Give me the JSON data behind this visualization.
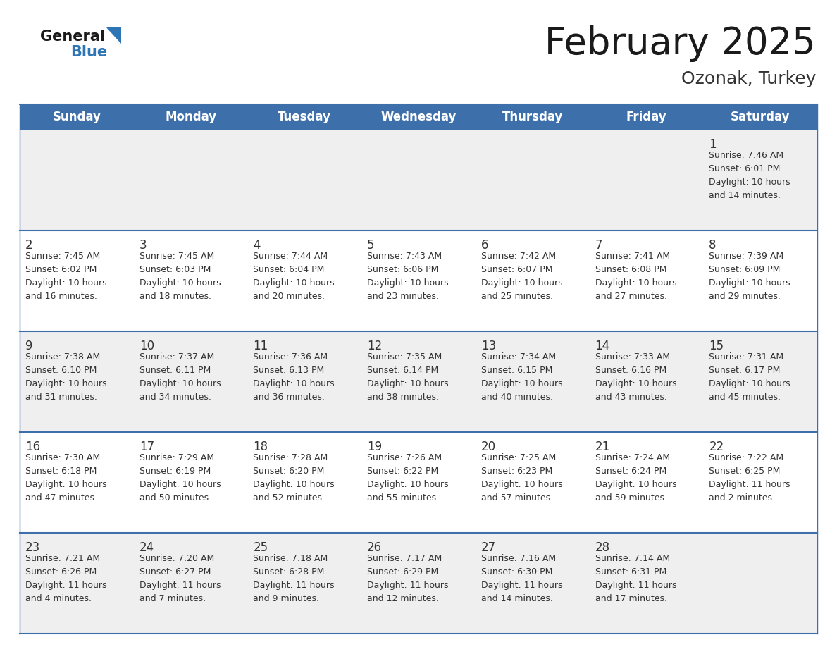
{
  "title": "February 2025",
  "subtitle": "Ozonak, Turkey",
  "header_color": "#3D6FAB",
  "header_text_color": "#FFFFFF",
  "day_names": [
    "Sunday",
    "Monday",
    "Tuesday",
    "Wednesday",
    "Thursday",
    "Friday",
    "Saturday"
  ],
  "bg_color": "#FFFFFF",
  "cell_bg_0": "#EFEFEF",
  "cell_bg_1": "#FFFFFF",
  "cell_bg_2": "#EFEFEF",
  "cell_bg_3": "#FFFFFF",
  "cell_bg_4": "#EFEFEF",
  "row_line_color": "#3D6FAB",
  "text_color": "#333333",
  "days": [
    {
      "day": 1,
      "col": 6,
      "row": 0,
      "sunrise": "7:46 AM",
      "sunset": "6:01 PM",
      "daylight_hours": 10,
      "daylight_minutes": 14
    },
    {
      "day": 2,
      "col": 0,
      "row": 1,
      "sunrise": "7:45 AM",
      "sunset": "6:02 PM",
      "daylight_hours": 10,
      "daylight_minutes": 16
    },
    {
      "day": 3,
      "col": 1,
      "row": 1,
      "sunrise": "7:45 AM",
      "sunset": "6:03 PM",
      "daylight_hours": 10,
      "daylight_minutes": 18
    },
    {
      "day": 4,
      "col": 2,
      "row": 1,
      "sunrise": "7:44 AM",
      "sunset": "6:04 PM",
      "daylight_hours": 10,
      "daylight_minutes": 20
    },
    {
      "day": 5,
      "col": 3,
      "row": 1,
      "sunrise": "7:43 AM",
      "sunset": "6:06 PM",
      "daylight_hours": 10,
      "daylight_minutes": 23
    },
    {
      "day": 6,
      "col": 4,
      "row": 1,
      "sunrise": "7:42 AM",
      "sunset": "6:07 PM",
      "daylight_hours": 10,
      "daylight_minutes": 25
    },
    {
      "day": 7,
      "col": 5,
      "row": 1,
      "sunrise": "7:41 AM",
      "sunset": "6:08 PM",
      "daylight_hours": 10,
      "daylight_minutes": 27
    },
    {
      "day": 8,
      "col": 6,
      "row": 1,
      "sunrise": "7:39 AM",
      "sunset": "6:09 PM",
      "daylight_hours": 10,
      "daylight_minutes": 29
    },
    {
      "day": 9,
      "col": 0,
      "row": 2,
      "sunrise": "7:38 AM",
      "sunset": "6:10 PM",
      "daylight_hours": 10,
      "daylight_minutes": 31
    },
    {
      "day": 10,
      "col": 1,
      "row": 2,
      "sunrise": "7:37 AM",
      "sunset": "6:11 PM",
      "daylight_hours": 10,
      "daylight_minutes": 34
    },
    {
      "day": 11,
      "col": 2,
      "row": 2,
      "sunrise": "7:36 AM",
      "sunset": "6:13 PM",
      "daylight_hours": 10,
      "daylight_minutes": 36
    },
    {
      "day": 12,
      "col": 3,
      "row": 2,
      "sunrise": "7:35 AM",
      "sunset": "6:14 PM",
      "daylight_hours": 10,
      "daylight_minutes": 38
    },
    {
      "day": 13,
      "col": 4,
      "row": 2,
      "sunrise": "7:34 AM",
      "sunset": "6:15 PM",
      "daylight_hours": 10,
      "daylight_minutes": 40
    },
    {
      "day": 14,
      "col": 5,
      "row": 2,
      "sunrise": "7:33 AM",
      "sunset": "6:16 PM",
      "daylight_hours": 10,
      "daylight_minutes": 43
    },
    {
      "day": 15,
      "col": 6,
      "row": 2,
      "sunrise": "7:31 AM",
      "sunset": "6:17 PM",
      "daylight_hours": 10,
      "daylight_minutes": 45
    },
    {
      "day": 16,
      "col": 0,
      "row": 3,
      "sunrise": "7:30 AM",
      "sunset": "6:18 PM",
      "daylight_hours": 10,
      "daylight_minutes": 47
    },
    {
      "day": 17,
      "col": 1,
      "row": 3,
      "sunrise": "7:29 AM",
      "sunset": "6:19 PM",
      "daylight_hours": 10,
      "daylight_minutes": 50
    },
    {
      "day": 18,
      "col": 2,
      "row": 3,
      "sunrise": "7:28 AM",
      "sunset": "6:20 PM",
      "daylight_hours": 10,
      "daylight_minutes": 52
    },
    {
      "day": 19,
      "col": 3,
      "row": 3,
      "sunrise": "7:26 AM",
      "sunset": "6:22 PM",
      "daylight_hours": 10,
      "daylight_minutes": 55
    },
    {
      "day": 20,
      "col": 4,
      "row": 3,
      "sunrise": "7:25 AM",
      "sunset": "6:23 PM",
      "daylight_hours": 10,
      "daylight_minutes": 57
    },
    {
      "day": 21,
      "col": 5,
      "row": 3,
      "sunrise": "7:24 AM",
      "sunset": "6:24 PM",
      "daylight_hours": 10,
      "daylight_minutes": 59
    },
    {
      "day": 22,
      "col": 6,
      "row": 3,
      "sunrise": "7:22 AM",
      "sunset": "6:25 PM",
      "daylight_hours": 11,
      "daylight_minutes": 2
    },
    {
      "day": 23,
      "col": 0,
      "row": 4,
      "sunrise": "7:21 AM",
      "sunset": "6:26 PM",
      "daylight_hours": 11,
      "daylight_minutes": 4
    },
    {
      "day": 24,
      "col": 1,
      "row": 4,
      "sunrise": "7:20 AM",
      "sunset": "6:27 PM",
      "daylight_hours": 11,
      "daylight_minutes": 7
    },
    {
      "day": 25,
      "col": 2,
      "row": 4,
      "sunrise": "7:18 AM",
      "sunset": "6:28 PM",
      "daylight_hours": 11,
      "daylight_minutes": 9
    },
    {
      "day": 26,
      "col": 3,
      "row": 4,
      "sunrise": "7:17 AM",
      "sunset": "6:29 PM",
      "daylight_hours": 11,
      "daylight_minutes": 12
    },
    {
      "day": 27,
      "col": 4,
      "row": 4,
      "sunrise": "7:16 AM",
      "sunset": "6:30 PM",
      "daylight_hours": 11,
      "daylight_minutes": 14
    },
    {
      "day": 28,
      "col": 5,
      "row": 4,
      "sunrise": "7:14 AM",
      "sunset": "6:31 PM",
      "daylight_hours": 11,
      "daylight_minutes": 17
    }
  ],
  "num_rows": 5,
  "logo_general_color": "#1a1a1a",
  "logo_blue_color": "#2E75B6",
  "logo_triangle_color": "#2E75B6"
}
